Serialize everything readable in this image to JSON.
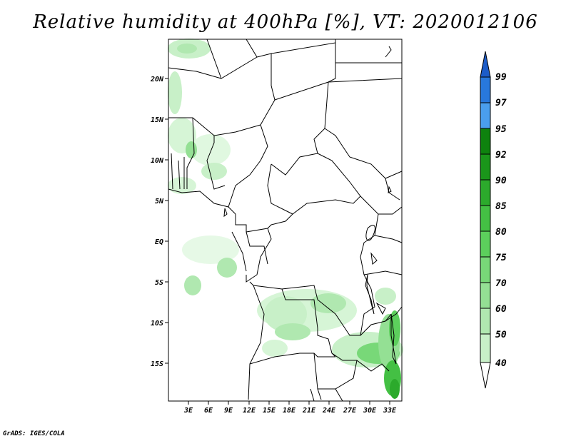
{
  "title": "Relative humidity at 400hPa [%], VT: 2020012106",
  "credit": "GrADS: IGES/COLA",
  "map": {
    "lat_labels": [
      "20N",
      "15N",
      "10N",
      "5N",
      "EQ",
      "5S",
      "10S",
      "15S"
    ],
    "lon_labels": [
      "3E",
      "6E",
      "9E",
      "12E",
      "15E",
      "18E",
      "21E",
      "24E",
      "27E",
      "30E",
      "33E"
    ]
  },
  "colorbar": {
    "levels": [
      "40",
      "50",
      "60",
      "70",
      "75",
      "80",
      "85",
      "90",
      "92",
      "95",
      "97",
      "99"
    ],
    "colors": [
      "#e6f9e6",
      "#c8f0c8",
      "#b0e8b0",
      "#94e094",
      "#78d878",
      "#5ccf5c",
      "#44c044",
      "#2caa2c",
      "#1a961a",
      "#0e820e",
      "#4a9eee",
      "#2878dc",
      "#1c5cc8"
    ]
  }
}
